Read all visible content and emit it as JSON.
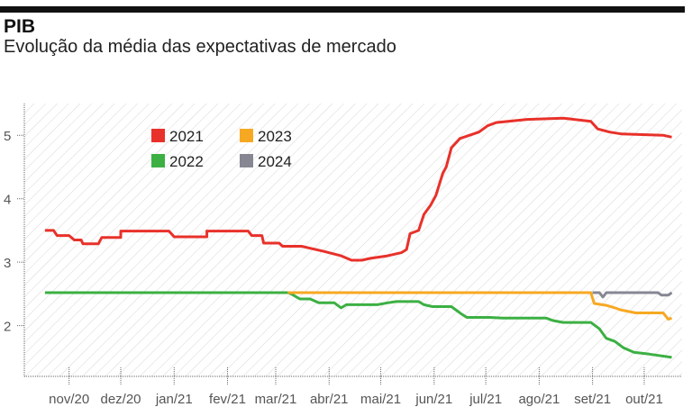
{
  "header": {
    "title": "PIB",
    "subtitle": "Evolução da média das expectativas de mercado"
  },
  "chart_data": {
    "type": "line",
    "title": "PIB",
    "subtitle": "Evolução da média das expectativas de mercado",
    "xlabel": "",
    "ylabel": "",
    "xlim": [
      "2020-10-06",
      "2021-10-23"
    ],
    "ylim": [
      1.2,
      5.5
    ],
    "yticks": [
      2,
      3,
      4,
      5
    ],
    "xticks": [
      {
        "date": "2020-11-01",
        "label": "nov/20"
      },
      {
        "date": "2020-12-01",
        "label": "dez/20"
      },
      {
        "date": "2021-01-01",
        "label": "jan/21"
      },
      {
        "date": "2021-02-01",
        "label": "fev/21"
      },
      {
        "date": "2021-03-01",
        "label": "mar/21"
      },
      {
        "date": "2021-04-01",
        "label": "abr/21"
      },
      {
        "date": "2021-05-01",
        "label": "mai/21"
      },
      {
        "date": "2021-06-01",
        "label": "jun/21"
      },
      {
        "date": "2021-07-01",
        "label": "jul/21"
      },
      {
        "date": "2021-08-01",
        "label": "ago/21"
      },
      {
        "date": "2021-09-01",
        "label": "set/21"
      },
      {
        "date": "2021-10-01",
        "label": "out/21"
      }
    ],
    "grid": false,
    "background": "diagonal-hatch",
    "legend_position": "top-left",
    "series": [
      {
        "name": "2021",
        "color": "#e8312a",
        "points": [
          [
            "2020-10-18",
            3.5
          ],
          [
            "2020-10-23",
            3.5
          ],
          [
            "2020-10-25",
            3.42
          ],
          [
            "2020-11-01",
            3.42
          ],
          [
            "2020-11-04",
            3.35
          ],
          [
            "2020-11-08",
            3.35
          ],
          [
            "2020-11-09",
            3.29
          ],
          [
            "2020-11-18",
            3.29
          ],
          [
            "2020-11-20",
            3.39
          ],
          [
            "2020-12-01",
            3.39
          ],
          [
            "2020-12-01",
            3.49
          ],
          [
            "2020-12-29",
            3.49
          ],
          [
            "2021-01-01",
            3.4
          ],
          [
            "2021-01-20",
            3.4
          ],
          [
            "2021-01-20",
            3.49
          ],
          [
            "2021-02-13",
            3.49
          ],
          [
            "2021-02-15",
            3.42
          ],
          [
            "2021-02-21",
            3.42
          ],
          [
            "2021-02-22",
            3.3
          ],
          [
            "2021-03-03",
            3.3
          ],
          [
            "2021-03-05",
            3.25
          ],
          [
            "2021-03-16",
            3.25
          ],
          [
            "2021-03-21",
            3.22
          ],
          [
            "2021-03-29",
            3.17
          ],
          [
            "2021-04-08",
            3.1
          ],
          [
            "2021-04-14",
            3.03
          ],
          [
            "2021-04-20",
            3.03
          ],
          [
            "2021-04-25",
            3.06
          ],
          [
            "2021-05-05",
            3.1
          ],
          [
            "2021-05-13",
            3.15
          ],
          [
            "2021-05-16",
            3.2
          ],
          [
            "2021-05-18",
            3.45
          ],
          [
            "2021-05-23",
            3.5
          ],
          [
            "2021-05-26",
            3.75
          ],
          [
            "2021-05-30",
            3.9
          ],
          [
            "2021-06-02",
            4.05
          ],
          [
            "2021-06-06",
            4.4
          ],
          [
            "2021-06-08",
            4.5
          ],
          [
            "2021-06-11",
            4.8
          ],
          [
            "2021-06-16",
            4.95
          ],
          [
            "2021-06-27",
            5.05
          ],
          [
            "2021-07-02",
            5.15
          ],
          [
            "2021-07-07",
            5.2
          ],
          [
            "2021-07-25",
            5.25
          ],
          [
            "2021-08-15",
            5.27
          ],
          [
            "2021-08-31",
            5.22
          ],
          [
            "2021-09-04",
            5.1
          ],
          [
            "2021-09-11",
            5.05
          ],
          [
            "2021-09-18",
            5.02
          ],
          [
            "2021-10-12",
            5.0
          ],
          [
            "2021-10-17",
            4.97
          ]
        ]
      },
      {
        "name": "2022",
        "color": "#3cb043",
        "points": [
          [
            "2020-10-18",
            2.52
          ],
          [
            "2021-03-08",
            2.52
          ],
          [
            "2021-03-10",
            2.5
          ],
          [
            "2021-03-15",
            2.42
          ],
          [
            "2021-03-21",
            2.42
          ],
          [
            "2021-03-26",
            2.36
          ],
          [
            "2021-04-04",
            2.36
          ],
          [
            "2021-04-08",
            2.28
          ],
          [
            "2021-04-11",
            2.33
          ],
          [
            "2021-04-29",
            2.33
          ],
          [
            "2021-05-05",
            2.36
          ],
          [
            "2021-05-10",
            2.38
          ],
          [
            "2021-05-23",
            2.38
          ],
          [
            "2021-05-26",
            2.33
          ],
          [
            "2021-05-31",
            2.3
          ],
          [
            "2021-06-11",
            2.3
          ],
          [
            "2021-06-15",
            2.22
          ],
          [
            "2021-06-17",
            2.18
          ],
          [
            "2021-06-20",
            2.13
          ],
          [
            "2021-07-03",
            2.13
          ],
          [
            "2021-07-11",
            2.12
          ],
          [
            "2021-08-05",
            2.12
          ],
          [
            "2021-08-09",
            2.08
          ],
          [
            "2021-08-15",
            2.05
          ],
          [
            "2021-08-31",
            2.05
          ],
          [
            "2021-09-05",
            1.95
          ],
          [
            "2021-09-09",
            1.8
          ],
          [
            "2021-09-14",
            1.75
          ],
          [
            "2021-09-19",
            1.65
          ],
          [
            "2021-09-25",
            1.58
          ],
          [
            "2021-10-04",
            1.55
          ],
          [
            "2021-10-17",
            1.5
          ]
        ]
      },
      {
        "name": "2023",
        "color": "#f7a823",
        "points": [
          [
            "2021-03-08",
            2.52
          ],
          [
            "2021-08-31",
            2.52
          ],
          [
            "2021-09-02",
            2.35
          ],
          [
            "2021-09-09",
            2.32
          ],
          [
            "2021-09-14",
            2.28
          ],
          [
            "2021-09-17",
            2.25
          ],
          [
            "2021-09-26",
            2.2
          ],
          [
            "2021-10-12",
            2.2
          ],
          [
            "2021-10-15",
            2.1
          ],
          [
            "2021-10-17",
            2.12
          ]
        ]
      },
      {
        "name": "2024",
        "color": "#878793",
        "points": [
          [
            "2021-09-01",
            2.52
          ],
          [
            "2021-09-05",
            2.52
          ],
          [
            "2021-09-07",
            2.45
          ],
          [
            "2021-09-09",
            2.52
          ],
          [
            "2021-10-09",
            2.52
          ],
          [
            "2021-10-11",
            2.48
          ],
          [
            "2021-10-15",
            2.48
          ],
          [
            "2021-10-17",
            2.52
          ]
        ]
      }
    ]
  }
}
